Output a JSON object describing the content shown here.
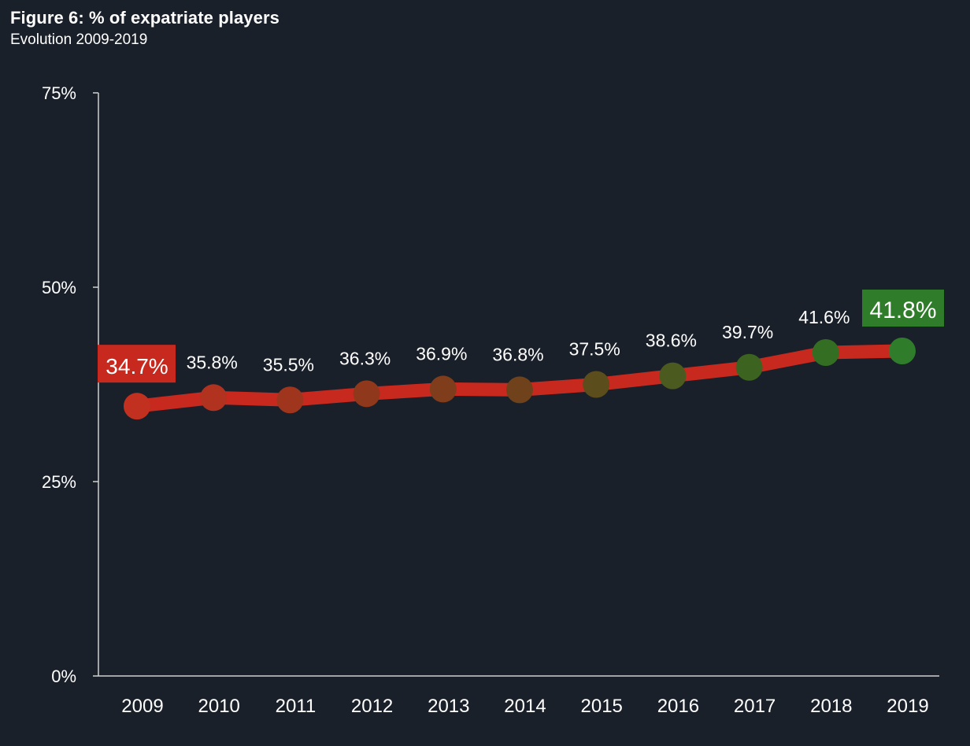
{
  "header": {
    "title": "Figure 6: % of expatriate players",
    "subtitle": "Evolution 2009-2019"
  },
  "colors": {
    "background": "#1a202a",
    "line": "#c8291e",
    "axis": "#d0d0d0",
    "text": "#ffffff",
    "start_highlight": "#c8291e",
    "end_highlight": "#2f7d2a",
    "marker_gradient": [
      "#c2301f",
      "#b0321f",
      "#a0351d",
      "#8f381c",
      "#7f3d1b",
      "#6f421b",
      "#5c4d1c",
      "#4b5a1e",
      "#3c6420",
      "#336e22",
      "#2f7d2a"
    ]
  },
  "chart_data": {
    "type": "line",
    "title": "Figure 6: % of expatriate players",
    "subtitle": "Evolution 2009-2019",
    "xlabel": "",
    "ylabel": "",
    "categories": [
      "2009",
      "2010",
      "2011",
      "2012",
      "2013",
      "2014",
      "2015",
      "2016",
      "2017",
      "2018",
      "2019"
    ],
    "values": [
      34.7,
      35.8,
      35.5,
      36.3,
      36.9,
      36.8,
      37.5,
      38.6,
      39.7,
      41.6,
      41.8
    ],
    "data_labels": [
      "34.7%",
      "35.8%",
      "35.5%",
      "36.3%",
      "36.9%",
      "36.8%",
      "37.5%",
      "38.6%",
      "39.7%",
      "41.6%",
      "41.8%"
    ],
    "ylim": [
      0,
      75
    ],
    "yticks": [
      0,
      25,
      50,
      75
    ],
    "ytick_labels": [
      "0%",
      "25%",
      "50%",
      "75%"
    ],
    "grid": false,
    "legend": "none",
    "highlighted": {
      "first": "34.7%",
      "last": "41.8%"
    }
  }
}
